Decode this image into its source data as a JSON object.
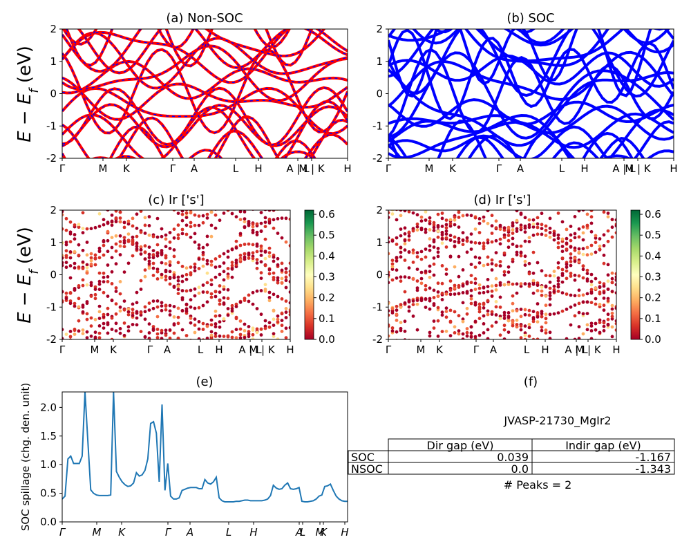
{
  "figure": {
    "ylabel_bands": "E − E_f (eV)",
    "ylabel_main": "E − E",
    "ylabel_sub": "f",
    "ylabel_unit": " (eV)"
  },
  "colors": {
    "nonsoc_band": "#ff0000",
    "nonsoc_dash": "#0000ff",
    "soc_band": "#0000ff",
    "spillage_line": "#1f77b4",
    "colormap": "RdYlGn"
  },
  "chart_data": [
    {
      "id": "a",
      "type": "line",
      "title": "(a) Non-SOC",
      "ylim": [
        -2,
        2
      ],
      "yticks": [
        -2,
        -1,
        0,
        1,
        2
      ],
      "xticks": [
        "Γ",
        "M",
        "K",
        "Γ",
        "A",
        "L",
        "H",
        "A | L",
        "M | K",
        "H"
      ],
      "series_style": "red solid with blue dashed overlay"
    },
    {
      "id": "b",
      "type": "line",
      "title": "(b) SOC",
      "ylim": [
        -2,
        2
      ],
      "yticks": [
        -2,
        -1,
        0,
        1,
        2
      ],
      "xticks": [
        "Γ",
        "M",
        "K",
        "Γ",
        "A",
        "L",
        "H",
        "A | L",
        "M | K",
        "H"
      ],
      "series_style": "blue solid"
    },
    {
      "id": "c",
      "type": "scatter",
      "title": "(c)  Ir ['s']",
      "ylim": [
        -2,
        2
      ],
      "yticks": [
        -2,
        -1,
        0,
        1,
        2
      ],
      "xticks": [
        "Γ",
        "M",
        "K",
        "Γ",
        "A",
        "L",
        "H",
        "A | L",
        "M | K",
        "H"
      ],
      "colorbar": {
        "min": 0.0,
        "max": 0.62,
        "ticks": [
          "0.0",
          "0.1",
          "0.2",
          "0.3",
          "0.4",
          "0.5",
          "0.6"
        ]
      }
    },
    {
      "id": "d",
      "type": "scatter",
      "title": "(d) Ir ['s']",
      "ylim": [
        -2,
        2
      ],
      "yticks": [
        -2,
        -1,
        0,
        1,
        2
      ],
      "xticks": [
        "Γ",
        "M",
        "K",
        "Γ",
        "A",
        "L",
        "H",
        "A | L",
        "M | K",
        "H"
      ],
      "colorbar": {
        "min": 0.0,
        "max": 0.62,
        "ticks": [
          "0.0",
          "0.1",
          "0.2",
          "0.3",
          "0.4",
          "0.5",
          "0.6"
        ]
      }
    },
    {
      "id": "e",
      "type": "line",
      "title": "(e)",
      "ylabel": "SOC spillage (chg. den. unit)",
      "ylim": [
        0,
        2.27
      ],
      "yticks": [
        "0.0",
        "0.5",
        "1.0",
        "1.5",
        "2.0"
      ],
      "xticks": [
        "Γ",
        "M",
        "K",
        "Γ",
        "A",
        "L",
        "H",
        "A",
        "L",
        "M",
        "K",
        "H"
      ],
      "x": [
        0,
        1,
        2,
        3,
        4,
        5,
        6,
        7,
        8,
        9,
        10,
        11,
        12,
        13,
        14,
        15,
        16,
        17,
        18,
        19,
        20,
        21,
        22,
        23,
        24,
        25,
        26,
        27,
        28,
        29,
        30,
        31,
        32,
        33,
        34,
        35,
        36,
        37,
        38,
        39,
        40,
        41,
        42,
        43,
        44,
        45,
        46,
        47,
        48,
        49,
        50,
        51,
        52,
        53,
        54,
        55,
        56,
        57,
        58,
        59,
        60,
        61,
        62,
        63,
        64,
        65,
        66,
        67,
        68,
        69,
        70,
        71,
        72,
        73,
        74,
        75,
        76,
        77,
        78,
        79,
        80,
        81,
        82,
        83,
        84,
        85,
        86,
        87,
        88,
        89,
        90,
        91,
        92,
        93,
        94,
        95,
        96,
        97,
        98,
        99,
        100
      ],
      "y": [
        0.4,
        0.45,
        1.1,
        1.15,
        1.02,
        1.02,
        1.02,
        1.15,
        2.27,
        1.4,
        0.56,
        0.5,
        0.47,
        0.46,
        0.46,
        0.46,
        0.46,
        0.47,
        2.27,
        0.88,
        0.78,
        0.7,
        0.65,
        0.62,
        0.63,
        0.68,
        0.86,
        0.8,
        0.82,
        0.9,
        1.1,
        1.72,
        1.75,
        1.55,
        0.7,
        2.05,
        0.55,
        1.02,
        0.45,
        0.4,
        0.4,
        0.42,
        0.55,
        0.57,
        0.59,
        0.6,
        0.6,
        0.6,
        0.58,
        0.58,
        0.74,
        0.68,
        0.66,
        0.7,
        0.78,
        0.42,
        0.37,
        0.35,
        0.35,
        0.35,
        0.35,
        0.36,
        0.36,
        0.37,
        0.38,
        0.38,
        0.37,
        0.37,
        0.37,
        0.37,
        0.37,
        0.38,
        0.4,
        0.46,
        0.64,
        0.59,
        0.57,
        0.58,
        0.64,
        0.68,
        0.58,
        0.57,
        0.58,
        0.6,
        0.36,
        0.35,
        0.35,
        0.36,
        0.37,
        0.4,
        0.45,
        0.47,
        0.62,
        0.63,
        0.66,
        0.55,
        0.45,
        0.4,
        0.37,
        0.36,
        0.36
      ]
    },
    {
      "id": "f",
      "type": "table",
      "title": "(f)",
      "subtitle": "JVASP-21730_MgIr2",
      "columns": [
        "Dir gap (eV)",
        "Indir gap (eV)"
      ],
      "rows": [
        {
          "label": "SOC",
          "values": [
            "0.039",
            "-1.167"
          ]
        },
        {
          "label": "NSOC",
          "values": [
            "0.0",
            "-1.343"
          ]
        }
      ],
      "note": "# Peaks = 2"
    }
  ]
}
